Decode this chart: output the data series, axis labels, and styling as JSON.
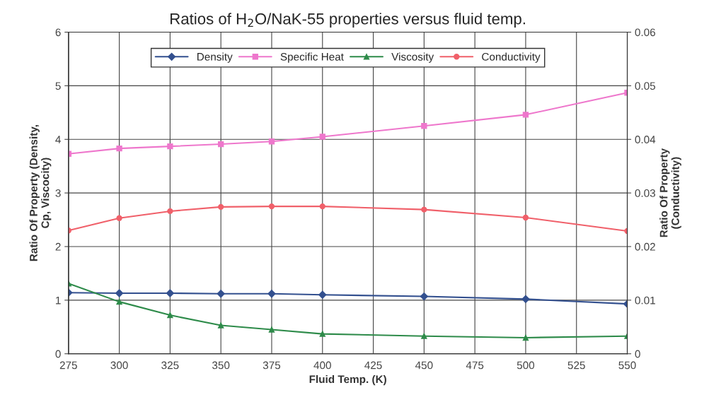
{
  "chart_data": {
    "type": "line",
    "title": "Ratios of H$_{2}$O/NaK-55 properties versus fluid temp.",
    "xlabel": "Fluid Temp. (K)",
    "ylabel": "Ratio Of Property (Density,\nCp, Viscocity)",
    "y2label": "Ratio Of Property\n(Conductivity)",
    "x": [
      275,
      300,
      325,
      350,
      375,
      400,
      450,
      500,
      550
    ],
    "series": [
      {
        "name": "Density",
        "color": "#33508f",
        "marker": "diamond",
        "values": [
          1.14,
          1.13,
          1.13,
          1.12,
          1.12,
          1.1,
          1.07,
          1.02,
          0.93
        ]
      },
      {
        "name": "Specific Heat",
        "color": "#ee77cc",
        "marker": "square",
        "values": [
          3.73,
          3.83,
          3.87,
          3.91,
          3.96,
          4.05,
          4.25,
          4.46,
          4.87
        ]
      },
      {
        "name": "Viscosity",
        "color": "#2e8b4a",
        "marker": "triangle",
        "values": [
          1.31,
          0.97,
          0.72,
          0.53,
          0.45,
          0.37,
          0.33,
          0.3,
          0.33
        ]
      },
      {
        "name": "Conductivity",
        "color": "#f0606a",
        "marker": "circle",
        "axis": "y2",
        "values": [
          0.023,
          0.0253,
          0.0266,
          0.0274,
          0.0275,
          0.0275,
          0.0269,
          0.0254,
          0.0229
        ]
      }
    ],
    "xlim": [
      275,
      550
    ],
    "xticks": [
      275,
      300,
      325,
      350,
      375,
      400,
      425,
      450,
      475,
      500,
      525,
      550
    ],
    "ylim": [
      0,
      6
    ],
    "yticks": [
      0,
      1,
      2,
      3,
      4,
      5,
      6
    ],
    "y2lim": [
      0,
      0.06
    ],
    "y2ticks": [
      {
        "value": 0,
        "label": "0"
      },
      {
        "value": 0.01,
        "label": "0.01"
      },
      {
        "value": 0.02,
        "label": "0.02"
      },
      {
        "value": 0.03,
        "label": "0.03"
      },
      {
        "value": 0.04,
        "label": "0.04"
      },
      {
        "value": 0.05,
        "label": "0.05"
      },
      {
        "value": 0.06,
        "label": "0.06"
      }
    ],
    "grid": true,
    "legend": "top",
    "line_style": "solid"
  }
}
